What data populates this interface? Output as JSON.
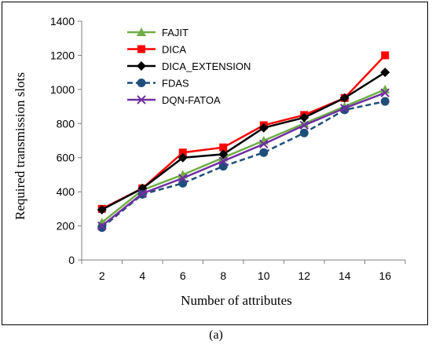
{
  "caption": "(a)",
  "chart_data": {
    "type": "line",
    "title": "",
    "xlabel": "Number of attributes",
    "ylabel": "Required transmission slots",
    "x": [
      2,
      4,
      6,
      8,
      10,
      12,
      14,
      16
    ],
    "xlim": [
      1,
      17
    ],
    "ylim": [
      0,
      1400
    ],
    "yticks": [
      0,
      200,
      400,
      600,
      800,
      1000,
      1200,
      1400
    ],
    "grid": false,
    "legend_position": "top-left",
    "series": [
      {
        "name": "FAJIT",
        "color": "#70AD47",
        "marker": "triangle",
        "dash": "solid",
        "values": [
          220,
          410,
          500,
          600,
          700,
          800,
          900,
          1000
        ]
      },
      {
        "name": "DICA",
        "color": "#FF0000",
        "marker": "square",
        "dash": "solid",
        "values": [
          300,
          420,
          630,
          660,
          790,
          850,
          950,
          1200
        ]
      },
      {
        "name": "DICA_EXTENSION",
        "color": "#000000",
        "marker": "diamond",
        "dash": "solid",
        "values": [
          295,
          420,
          600,
          620,
          775,
          835,
          950,
          1100
        ]
      },
      {
        "name": "FDAS",
        "color": "#1F4E79",
        "marker": "circle",
        "dash": "dashed",
        "values": [
          190,
          385,
          450,
          550,
          630,
          745,
          880,
          930
        ]
      },
      {
        "name": "DQN-FATOA",
        "color": "#7030A0",
        "marker": "x",
        "dash": "solid",
        "values": [
          200,
          390,
          480,
          580,
          680,
          790,
          890,
          980
        ]
      }
    ]
  }
}
